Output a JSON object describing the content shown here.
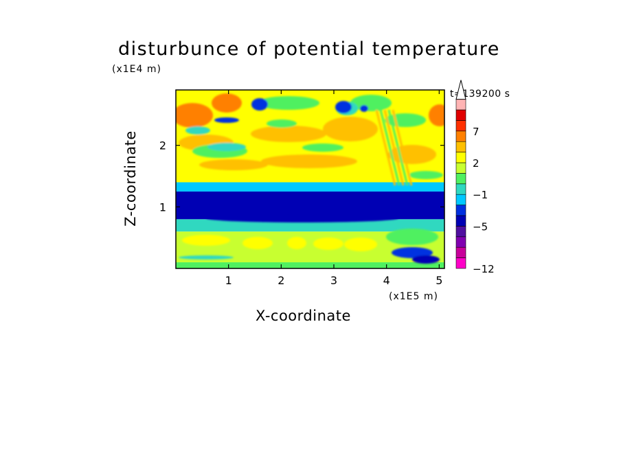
{
  "chart_data": {
    "type": "heatmap",
    "title": "disturbunce of potential temperature",
    "xlabel": "X-coordinate",
    "ylabel": "Z-coordinate",
    "x_unit_label": "(x1E5 m)",
    "y_unit_label": "(x1E4 m)",
    "time_label": "t=139200 s",
    "xlim": [
      0,
      5.1
    ],
    "ylim": [
      0,
      2.9
    ],
    "x_ticks": [
      1,
      2,
      3,
      4,
      5
    ],
    "y_ticks": [
      1,
      2
    ],
    "colorbar": {
      "labels": [
        {
          "value": 7,
          "text": "7"
        },
        {
          "value": 2,
          "text": "2"
        },
        {
          "value": -1,
          "text": "−1"
        },
        {
          "value": -5,
          "text": "−5"
        },
        {
          "value": -12,
          "text": "−12"
        }
      ],
      "levels_bottom_to_top": [
        "-12",
        "-10",
        "-8",
        "-7",
        "-5",
        "-3",
        "-2",
        "-1",
        "0",
        "1",
        "2",
        "3",
        "5",
        "7",
        "9",
        "11"
      ],
      "colors_bottom_to_top": [
        "#ff00c8",
        "#c8009a",
        "#8000b0",
        "#5010a0",
        "#0000b4",
        "#0030e0",
        "#00c8ff",
        "#30d8c0",
        "#50f060",
        "#c8ff30",
        "#ffff00",
        "#ffc000",
        "#ff8000",
        "#ff3000",
        "#e00000",
        "#ffb4b4"
      ],
      "extend_top": true
    },
    "bands": [
      {
        "z_range": [
          0,
          0.1
        ],
        "value": 0
      },
      {
        "z_range": [
          0.1,
          0.6
        ],
        "value": 1
      },
      {
        "z_range": [
          0.6,
          0.8
        ],
        "value": -1
      },
      {
        "z_range": [
          0.8,
          1.25
        ],
        "value": -5
      },
      {
        "z_range": [
          1.25,
          1.4
        ],
        "value": -2
      },
      {
        "z_range": [
          1.4,
          2.9
        ],
        "value": 2
      }
    ]
  }
}
